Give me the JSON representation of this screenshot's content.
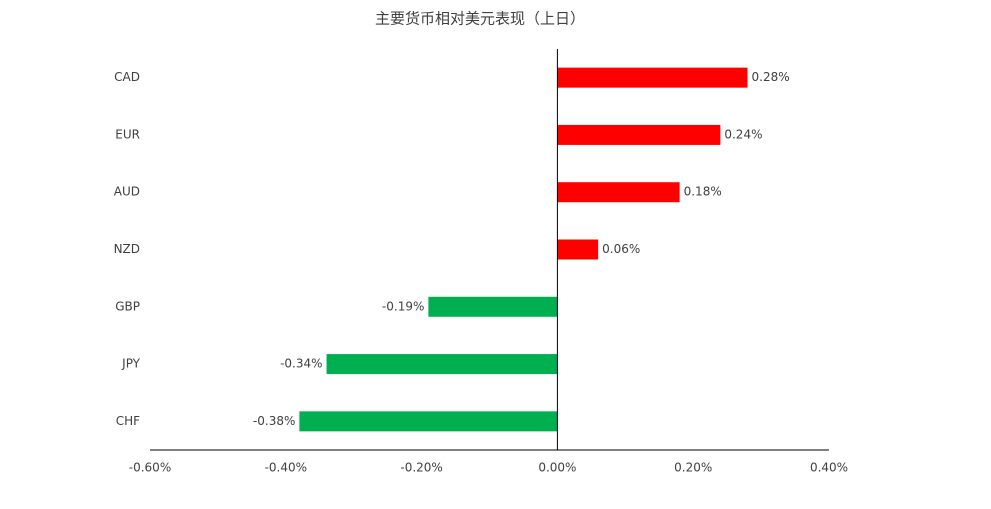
{
  "chart_data": {
    "type": "hbar",
    "title": "主要货币相对美元表现（上日）",
    "categories": [
      "CAD",
      "EUR",
      "AUD",
      "NZD",
      "GBP",
      "JPY",
      "CHF"
    ],
    "values": [
      0.28,
      0.24,
      0.18,
      0.06,
      -0.19,
      -0.34,
      -0.38
    ],
    "value_labels": [
      "0.28%",
      "0.24%",
      "0.18%",
      "0.06%",
      "-0.19%",
      "-0.34%",
      "-0.38%"
    ],
    "colors": [
      "#ff0000",
      "#ff0000",
      "#ff0000",
      "#ff0000",
      "#00b050",
      "#00b050",
      "#00b050"
    ],
    "xlim": [
      -0.6,
      0.4
    ],
    "xticks": [
      {
        "value": -0.6,
        "label": "-0.60%"
      },
      {
        "value": -0.4,
        "label": "-0.40%"
      },
      {
        "value": -0.2,
        "label": "-0.20%"
      },
      {
        "value": 0,
        "label": "0.00%"
      },
      {
        "value": 0.2,
        "label": "0.20%"
      },
      {
        "value": 0.4,
        "label": "0.40%"
      }
    ],
    "grid": false
  }
}
